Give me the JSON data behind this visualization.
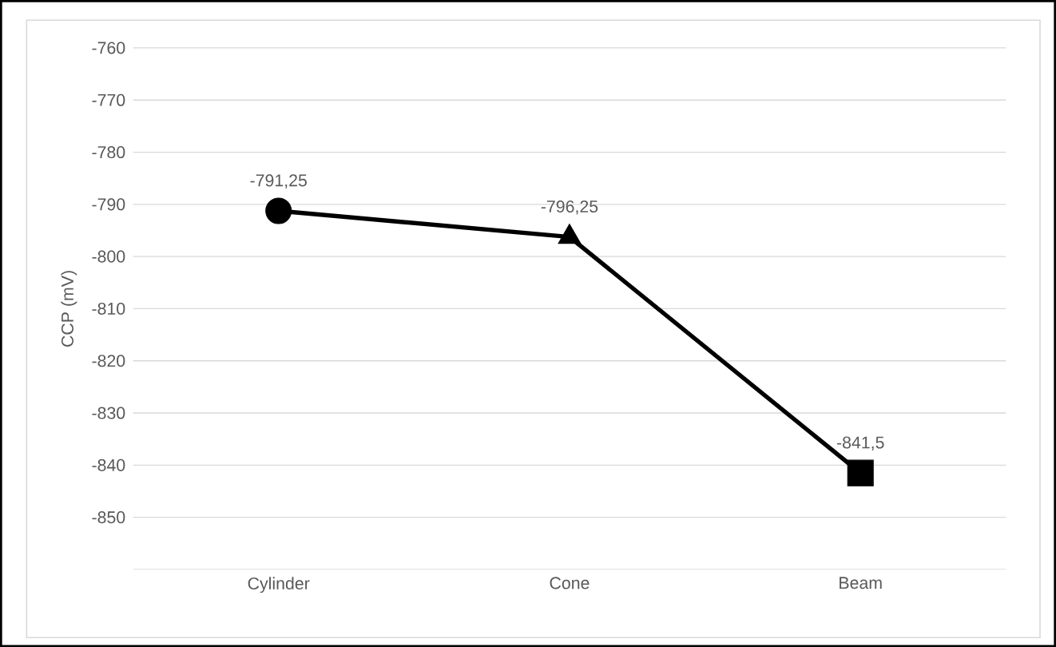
{
  "chart_data": {
    "type": "line",
    "categories": [
      "Cylinder",
      "Cone",
      "Beam"
    ],
    "series": [
      {
        "color": "#000000",
        "values": [
          -791.25,
          -796.25,
          -841.5
        ],
        "value_labels": [
          "-791,25",
          "-796,25",
          "-841,5"
        ]
      }
    ],
    "ylabel": "CCP (mV)",
    "ylim": [
      -860,
      -760
    ],
    "yticks": [
      -850,
      -840,
      -830,
      -820,
      -810,
      -800,
      -790,
      -780,
      -770,
      -760
    ],
    "grid": "y",
    "marker": [
      "circle",
      "triangle",
      "square"
    ],
    "line_style": "solid"
  }
}
